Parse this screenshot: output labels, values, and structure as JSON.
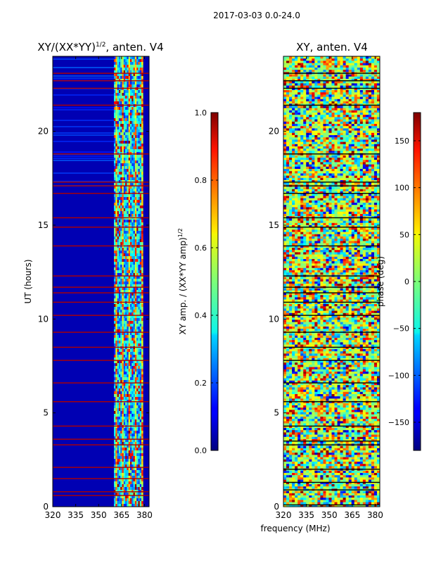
{
  "figure": {
    "suptitle": "2017-03-03 0.0-24.0",
    "shared_xlabel": "frequency (MHz)"
  },
  "chart_data": [
    {
      "type": "heatmap",
      "title_main": "XY/(XX*YY)",
      "title_sup": "1/2",
      "title_rest": ", anten. V4",
      "ylabel": "UT (hours)",
      "xlim": [
        320,
        383
      ],
      "ylim": [
        0,
        24
      ],
      "xticks": [
        "320",
        "335",
        "350",
        "365",
        "380"
      ],
      "xtick_values": [
        320,
        335,
        350,
        365,
        380
      ],
      "yticks": [
        "0",
        "5",
        "10",
        "15",
        "20"
      ],
      "ytick_values": [
        0,
        5,
        10,
        15,
        20
      ],
      "colorbar": {
        "label_main": "XY amp. / (XX*YY amp)",
        "label_sup": "1/2",
        "range": [
          0.0,
          1.0
        ],
        "ticks": [
          "0.0",
          "0.2",
          "0.4",
          "0.6",
          "0.8",
          "1.0"
        ],
        "tick_values": [
          0.0,
          0.2,
          0.4,
          0.6,
          0.8,
          1.0
        ],
        "colormap": "jet"
      },
      "features": {
        "background_value": 0.05,
        "active_band_mhz": [
          360,
          379
        ],
        "bright_hour_lines": [
          0.6,
          0.8,
          1.5,
          2.1,
          3.3,
          3.6,
          4.3,
          5.6,
          6.6,
          7.8,
          8.5,
          9.3,
          10.2,
          10.9,
          11.4,
          11.7,
          12.3,
          13.9,
          14.9,
          15.4,
          16.7,
          17.1,
          17.3,
          18.8,
          21.4,
          22.3,
          22.7,
          23.1
        ]
      }
    },
    {
      "type": "heatmap",
      "title": "XY, anten. V4",
      "xlim": [
        320,
        383
      ],
      "ylim": [
        0,
        24
      ],
      "xticks": [
        "320",
        "335",
        "350",
        "365",
        "380"
      ],
      "xtick_values": [
        320,
        335,
        350,
        365,
        380
      ],
      "yticks": [
        "0",
        "5",
        "10",
        "15",
        "20"
      ],
      "ytick_values": [
        0,
        5,
        10,
        15,
        20
      ],
      "colorbar": {
        "label": "phase (deg)",
        "range": [
          -180,
          180
        ],
        "ticks": [
          "−150",
          "−100",
          "−50",
          "0",
          "50",
          "100",
          "150"
        ],
        "tick_values": [
          -150,
          -100,
          -50,
          0,
          50,
          100,
          150
        ],
        "colormap": "jet"
      },
      "features": {
        "dark_hour_lines": [
          0.1,
          0.9,
          1.3,
          2.0,
          3.3,
          3.5,
          4.3,
          5.6,
          6.6,
          7.8,
          8.5,
          9.3,
          10.2,
          10.9,
          11.4,
          11.7,
          12.3,
          13.9,
          14.9,
          15.4,
          16.7,
          17.1,
          17.3,
          18.8,
          21.4,
          22.3,
          22.7,
          23.1
        ]
      }
    }
  ]
}
